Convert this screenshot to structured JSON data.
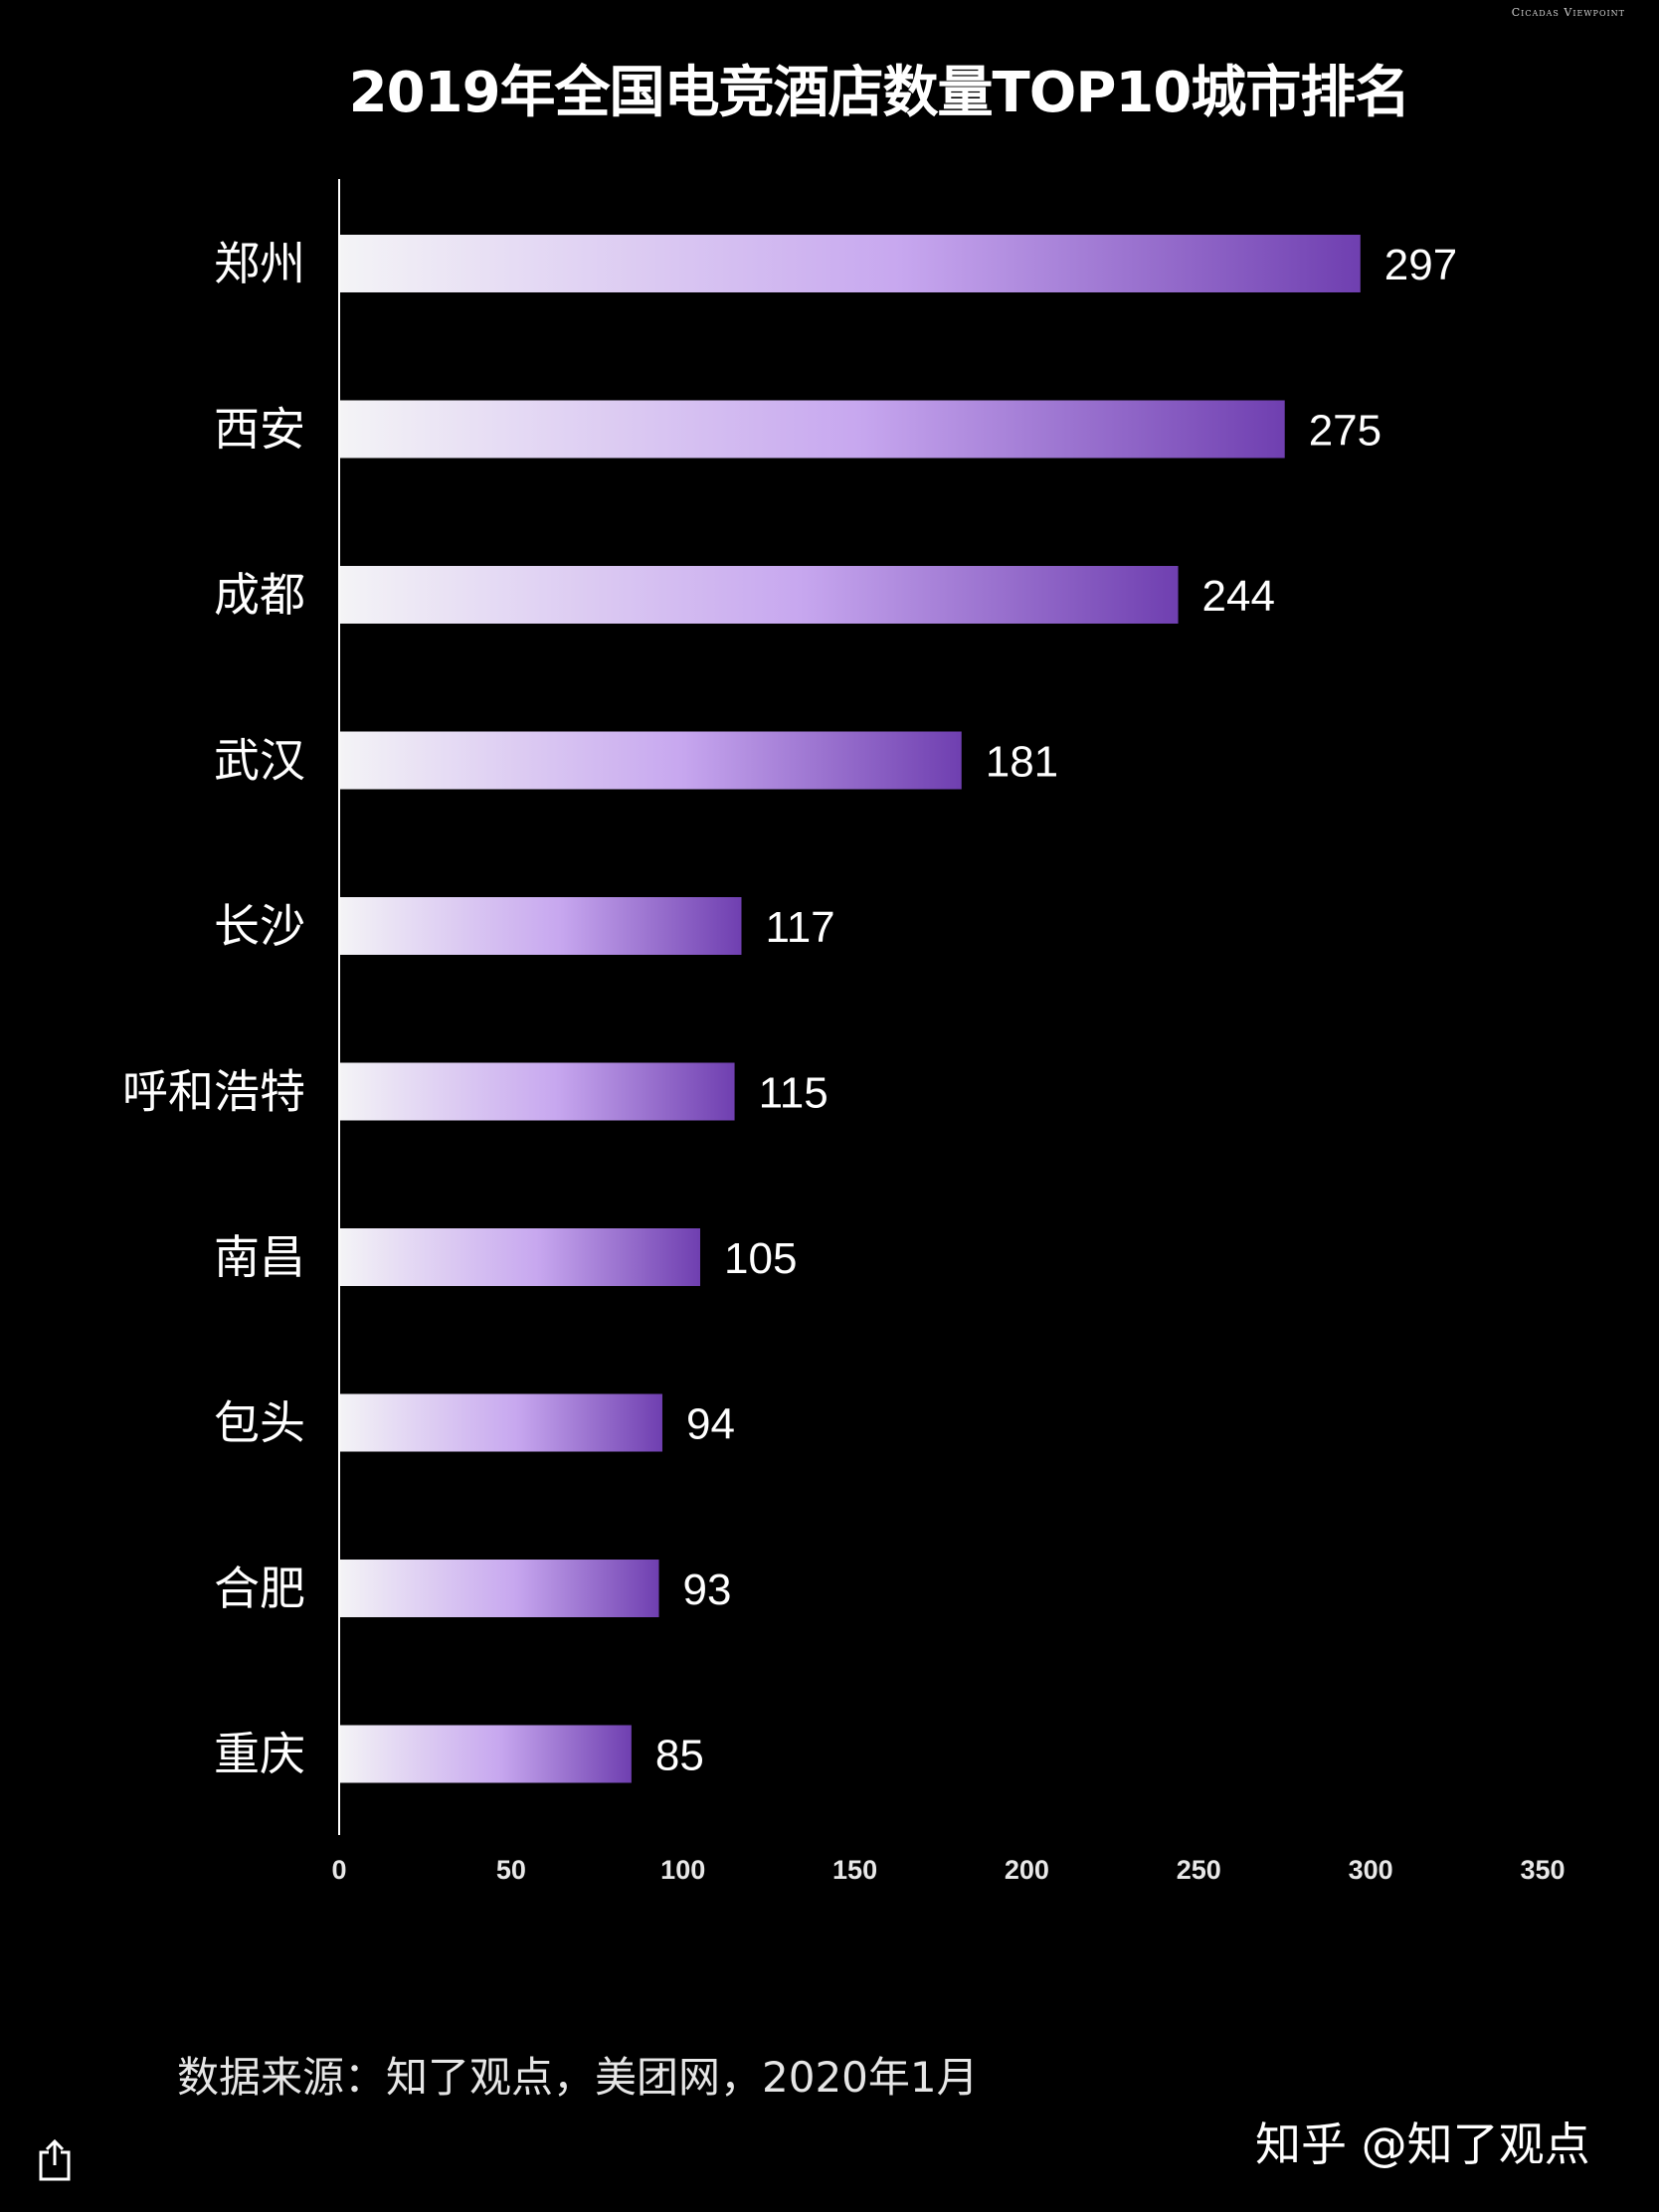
{
  "brand": "Cicadas Viewpoint",
  "title": "2019年全国电竞酒店数量TOP10城市排名",
  "source": "数据来源：知了观点，美团网，2020年1月",
  "watermark": "知乎 @知了观点",
  "share_icon": "share-icon",
  "colors": {
    "background": "#000000",
    "bar_start": "#f4f4f6",
    "bar_mid": "#c7a7ef",
    "bar_end": "#6f3fb0",
    "text": "#ffffff"
  },
  "chart_data": {
    "type": "bar",
    "orientation": "horizontal",
    "title": "2019年全国电竞酒店数量TOP10城市排名",
    "categories": [
      "郑州",
      "西安",
      "成都",
      "武汉",
      "长沙",
      "呼和浩特",
      "南昌",
      "包头",
      "合肥",
      "重庆"
    ],
    "values": [
      297,
      275,
      244,
      181,
      117,
      115,
      105,
      94,
      93,
      85
    ],
    "data_labels": [
      "297",
      "275",
      "244",
      "181",
      "117",
      "115",
      "105",
      "94",
      "93",
      "85"
    ],
    "xlim": [
      0,
      350
    ],
    "xticks": [
      "0",
      "50",
      "100",
      "150",
      "200",
      "250",
      "300",
      "350"
    ],
    "grid": false,
    "legend": "none"
  }
}
